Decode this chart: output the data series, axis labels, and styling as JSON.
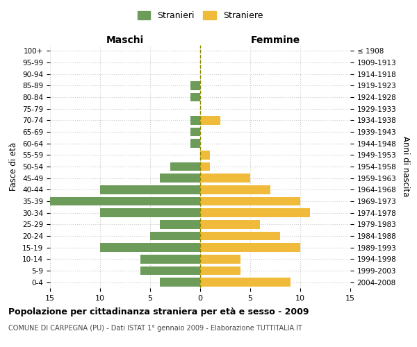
{
  "age_groups": [
    "100+",
    "95-99",
    "90-94",
    "85-89",
    "80-84",
    "75-79",
    "70-74",
    "65-69",
    "60-64",
    "55-59",
    "50-54",
    "45-49",
    "40-44",
    "35-39",
    "30-34",
    "25-29",
    "20-24",
    "15-19",
    "10-14",
    "5-9",
    "0-4"
  ],
  "birth_years": [
    "≤ 1908",
    "1909-1913",
    "1914-1918",
    "1919-1923",
    "1924-1928",
    "1929-1933",
    "1934-1938",
    "1939-1943",
    "1944-1948",
    "1949-1953",
    "1954-1958",
    "1959-1963",
    "1964-1968",
    "1969-1973",
    "1974-1978",
    "1979-1983",
    "1984-1988",
    "1989-1993",
    "1994-1998",
    "1999-2003",
    "2004-2008"
  ],
  "maschi": [
    0,
    0,
    0,
    1,
    1,
    0,
    1,
    1,
    1,
    0,
    3,
    4,
    10,
    15,
    10,
    4,
    5,
    10,
    6,
    6,
    4
  ],
  "femmine": [
    0,
    0,
    0,
    0,
    0,
    0,
    2,
    0,
    0,
    1,
    1,
    5,
    7,
    10,
    11,
    6,
    8,
    10,
    4,
    4,
    9
  ],
  "maschi_color": "#6d9c5a",
  "femmine_color": "#f0bb3a",
  "title": "Popolazione per cittadinanza straniera per età e sesso - 2009",
  "subtitle": "COMUNE DI CARPEGNA (PU) - Dati ISTAT 1° gennaio 2009 - Elaborazione TUTTITALIA.IT",
  "ylabel_left": "Fasce di età",
  "ylabel_right": "Anni di nascita",
  "xlabel_left": "Maschi",
  "xlabel_right": "Femmine",
  "legend_stranieri": "Stranieri",
  "legend_straniere": "Straniere",
  "xlim": 15,
  "background_color": "#ffffff",
  "grid_color": "#cccccc"
}
